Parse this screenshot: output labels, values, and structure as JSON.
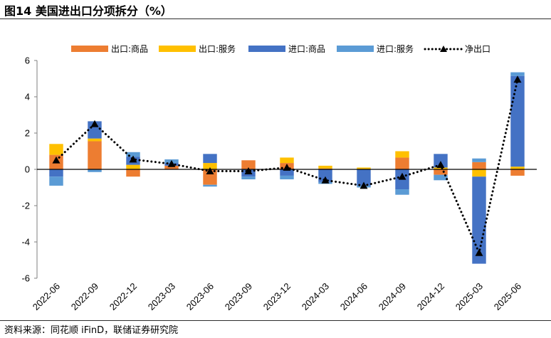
{
  "header": {
    "title": "图14 美国进出口分项拆分（%）"
  },
  "footer": {
    "source": "资料来源：同花顺 iFinD，联储证券研究院"
  },
  "colors": {
    "export_goods": "#ED7D31",
    "export_services": "#FFC000",
    "import_goods": "#4472C4",
    "import_services": "#5B9BD5",
    "net_exports": "#000000"
  },
  "chart_data": {
    "type": "bar",
    "stacked": true,
    "title": "",
    "xlabel": "",
    "ylabel": "",
    "ylim": [
      -6,
      6
    ],
    "yticks": [
      -6,
      -4,
      -2,
      0,
      2,
      4,
      6
    ],
    "grid": false,
    "legend_position": "top",
    "categories": [
      "2022-06",
      "2022-09",
      "2022-12",
      "2023-03",
      "2023-06",
      "2023-09",
      "2023-12",
      "2024-03",
      "2024-06",
      "2024-09",
      "2024-12",
      "2025-03",
      "2025-06"
    ],
    "series": [
      {
        "name": "出口:商品",
        "type": "bar",
        "color_key": "export_goods",
        "values": [
          0.8,
          1.55,
          -0.4,
          0.2,
          -0.85,
          0.5,
          0.35,
          0.05,
          0.0,
          0.65,
          -0.3,
          0.4,
          -0.35
        ]
      },
      {
        "name": "出口:服务",
        "type": "bar",
        "color_key": "export_services",
        "values": [
          0.6,
          0.15,
          0.25,
          0.0,
          0.35,
          0.0,
          0.3,
          0.15,
          0.1,
          0.35,
          0.1,
          -0.4,
          0.15
        ]
      },
      {
        "name": "进口:商品",
        "type": "bar",
        "color_key": "import_goods",
        "values": [
          -0.4,
          0.95,
          0.45,
          0.15,
          0.5,
          -0.4,
          -0.35,
          -0.7,
          -0.9,
          -1.1,
          0.75,
          -4.8,
          5.0
        ]
      },
      {
        "name": "进口:服务",
        "type": "bar",
        "color_key": "import_services",
        "values": [
          -0.5,
          -0.15,
          0.25,
          0.2,
          -0.1,
          -0.15,
          -0.2,
          -0.1,
          -0.1,
          -0.3,
          -0.3,
          0.2,
          0.2
        ]
      },
      {
        "name": "净出口",
        "type": "line",
        "style": "dotted",
        "marker": "triangle",
        "color_key": "net_exports",
        "values": [
          0.5,
          2.5,
          0.55,
          0.3,
          -0.1,
          -0.1,
          0.1,
          -0.6,
          -0.9,
          -0.4,
          0.25,
          -4.6,
          4.95
        ]
      }
    ]
  }
}
